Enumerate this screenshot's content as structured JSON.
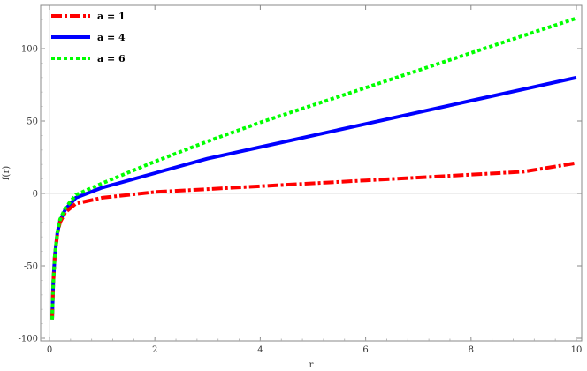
{
  "chart_data": {
    "type": "line",
    "xlabel": "r",
    "ylabel": "f(r)",
    "xlim": [
      0,
      10
    ],
    "ylim": [
      -100,
      130
    ],
    "x_ticks": [
      0,
      2,
      4,
      6,
      8,
      10
    ],
    "y_ticks": [
      -100,
      -50,
      0,
      50,
      100
    ],
    "grid": false,
    "legend_position": "top-left",
    "series": [
      {
        "name": "a = 1",
        "a": 1,
        "color": "#ff0000",
        "style": "dash-dot",
        "x": [
          0.05,
          0.07,
          0.1,
          0.15,
          0.2,
          0.3,
          0.5,
          1,
          2,
          3,
          4,
          5,
          6,
          7,
          8,
          9,
          10
        ],
        "y": [
          -87,
          -62,
          -43,
          -28,
          -20,
          -13,
          -7,
          -3,
          1,
          3,
          5,
          7,
          9,
          11,
          13,
          15,
          21
        ]
      },
      {
        "name": "a = 4",
        "a": 4,
        "color": "#0000ff",
        "style": "solid",
        "x": [
          0.05,
          0.07,
          0.1,
          0.15,
          0.2,
          0.3,
          0.5,
          1,
          2,
          3,
          4,
          5,
          6,
          7,
          8,
          9,
          10
        ],
        "y": [
          -87,
          -62,
          -43,
          -27,
          -19,
          -11,
          -3,
          4,
          14,
          24,
          32,
          40,
          48,
          56,
          64,
          72,
          80
        ]
      },
      {
        "name": "a = 6",
        "a": 6,
        "color": "#00ff00",
        "style": "dotted",
        "x": [
          0.05,
          0.07,
          0.1,
          0.15,
          0.2,
          0.3,
          0.5,
          1,
          2,
          3,
          4,
          5,
          6,
          7,
          8,
          9,
          10
        ],
        "y": [
          -87,
          -62,
          -43,
          -27,
          -18,
          -10,
          -1,
          7,
          22,
          36,
          49,
          61,
          73,
          85,
          97,
          109,
          121
        ]
      }
    ]
  }
}
